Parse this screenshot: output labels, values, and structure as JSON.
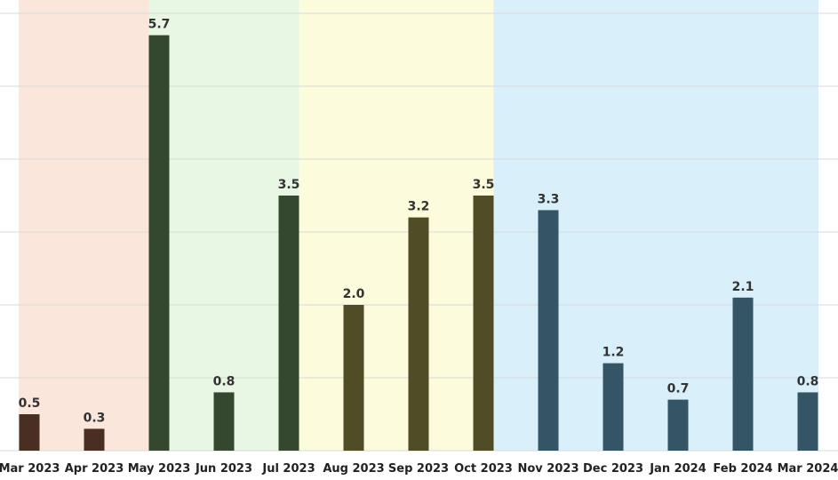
{
  "chart_data": {
    "type": "bar",
    "title": "",
    "xlabel": "",
    "ylabel": "",
    "ylim": [
      0,
      6
    ],
    "grid": true,
    "categories": [
      "Mar 2023",
      "Apr 2023",
      "May 2023",
      "Jun 2023",
      "Jul 2023",
      "Aug 2023",
      "Sep 2023",
      "Oct 2023",
      "Nov 2023",
      "Dec 2023",
      "Jan 2024",
      "Feb 2024",
      "Mar 2024"
    ],
    "values": [
      0.5,
      0.3,
      5.7,
      0.8,
      3.5,
      2.0,
      3.2,
      3.5,
      3.3,
      1.2,
      0.7,
      2.1,
      0.8
    ],
    "value_labels": [
      "0.5",
      "0.3",
      "5.7",
      "0.8",
      "3.5",
      "2.0",
      "3.2",
      "3.5",
      "3.3",
      "1.2",
      "0.7",
      "2.1",
      "0.8"
    ],
    "bar_colors": [
      "#4a2e22",
      "#4a2e22",
      "#344830",
      "#344830",
      "#344830",
      "#4f4c26",
      "#4f4c26",
      "#4f4c26",
      "#345565",
      "#345565",
      "#345565",
      "#345565",
      "#345565"
    ],
    "bands": [
      {
        "from_index": 0,
        "to_index": 1,
        "color": "#fbe6dc"
      },
      {
        "from_index": 2,
        "to_index": 4,
        "color": "#e8f7e4"
      },
      {
        "from_index": 5,
        "to_index": 7,
        "color": "#fcfbdc"
      },
      {
        "from_index": 8,
        "to_index": 12,
        "color": "#d9f0fb"
      }
    ],
    "gridline_color": "#d9d9d9"
  }
}
